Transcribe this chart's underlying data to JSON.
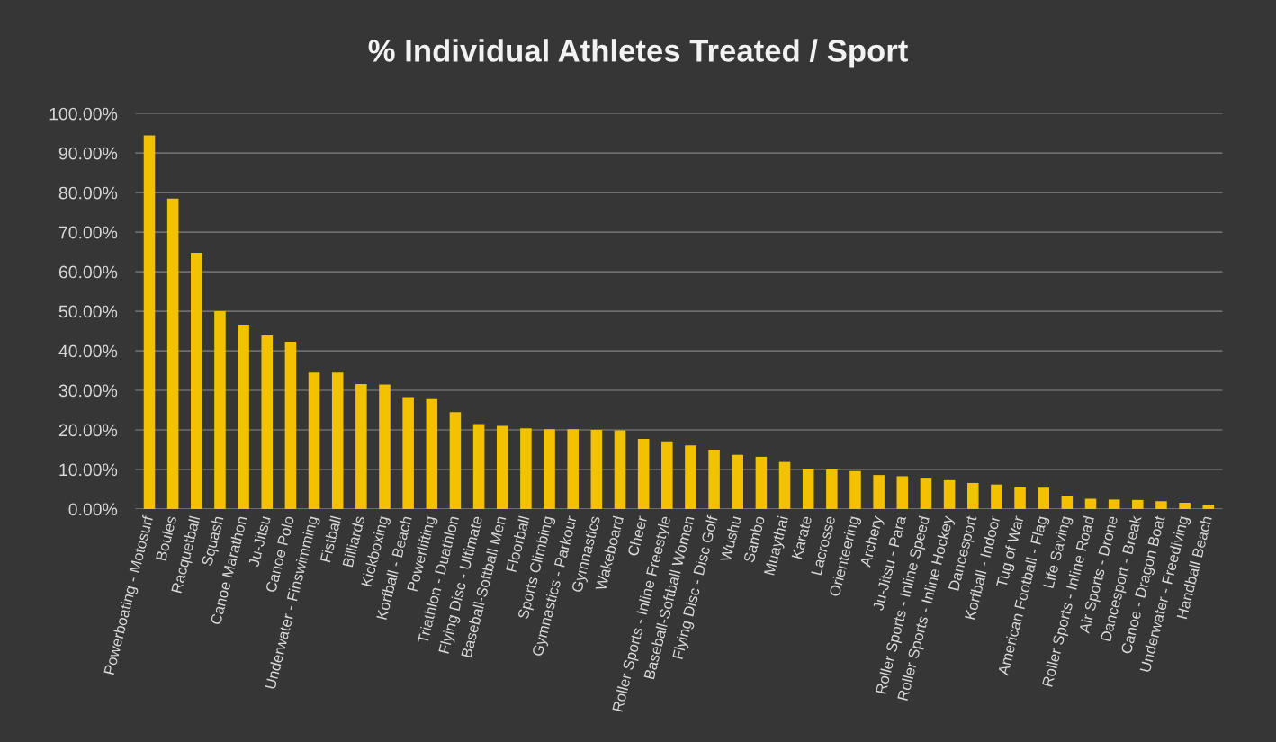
{
  "chart_data": {
    "type": "bar",
    "title": "% Individual Athletes Treated / Sport",
    "categories": [
      "Powerboating - Motosurf",
      "Boules",
      "Racquetball",
      "Squash",
      "Canoe Marathon",
      "Ju-Jitsu",
      "Canoe Polo",
      "Underwater - Finswimming",
      "Fistball",
      "Billiards",
      "Kickboxing",
      "Korfball - Beach",
      "Powerlifting",
      "Triathlon - Duathlon",
      "Flying Disc - Ultimate",
      "Baseball-Softball Men",
      "Floorball",
      "Sports Climbing",
      "Gymnastics - Parkour",
      "Gymnastics",
      "Wakeboard",
      "Cheer",
      "Roller Sports - Inline Freestyle",
      "Baseball-Softball Women",
      "Flying Disc - Disc Golf",
      "Wushu",
      "Sambo",
      "Muaythai",
      "Karate",
      "Lacrosse",
      "Orienteering",
      "Archery",
      "Ju-Jitsu - Para",
      "Roller Sports - Inline Speed",
      "Roller Sports - Inline Hockey",
      "Dancesport",
      "Korfball - Indoor",
      "Tug of War",
      "American Football - Flag",
      "Life Saving",
      "Roller Sports - Inline Road",
      "Air Sports - Drone",
      "Dancesport - Break",
      "Canoe - Dragon Boat",
      "Underwater - Freediving",
      "Handball Beach"
    ],
    "values": [
      94.5,
      78.5,
      64.8,
      50.0,
      46.6,
      43.9,
      42.3,
      34.5,
      34.5,
      31.6,
      31.5,
      28.3,
      27.8,
      24.5,
      21.5,
      21.0,
      20.4,
      20.2,
      20.2,
      20.0,
      19.9,
      17.7,
      17.1,
      16.1,
      15.0,
      13.7,
      13.2,
      11.9,
      10.2,
      10.0,
      9.6,
      8.6,
      8.3,
      7.7,
      7.3,
      6.6,
      6.2,
      5.5,
      5.4,
      3.4,
      2.6,
      2.4,
      2.3,
      2.0,
      1.6,
      1.1
    ],
    "color": "#f2c200",
    "ylim": [
      0,
      100
    ],
    "yticks": [
      {
        "value": 0,
        "label": "0.00%"
      },
      {
        "value": 10,
        "label": "10.00%"
      },
      {
        "value": 20,
        "label": "20.00%"
      },
      {
        "value": 30,
        "label": "30.00%"
      },
      {
        "value": 40,
        "label": "40.00%"
      },
      {
        "value": 50,
        "label": "50.00%"
      },
      {
        "value": 60,
        "label": "60.00%"
      },
      {
        "value": 70,
        "label": "70.00%"
      },
      {
        "value": 80,
        "label": "80.00%"
      },
      {
        "value": 90,
        "label": "90.00%"
      },
      {
        "value": 100,
        "label": "100.00%"
      }
    ],
    "grid": "y"
  }
}
